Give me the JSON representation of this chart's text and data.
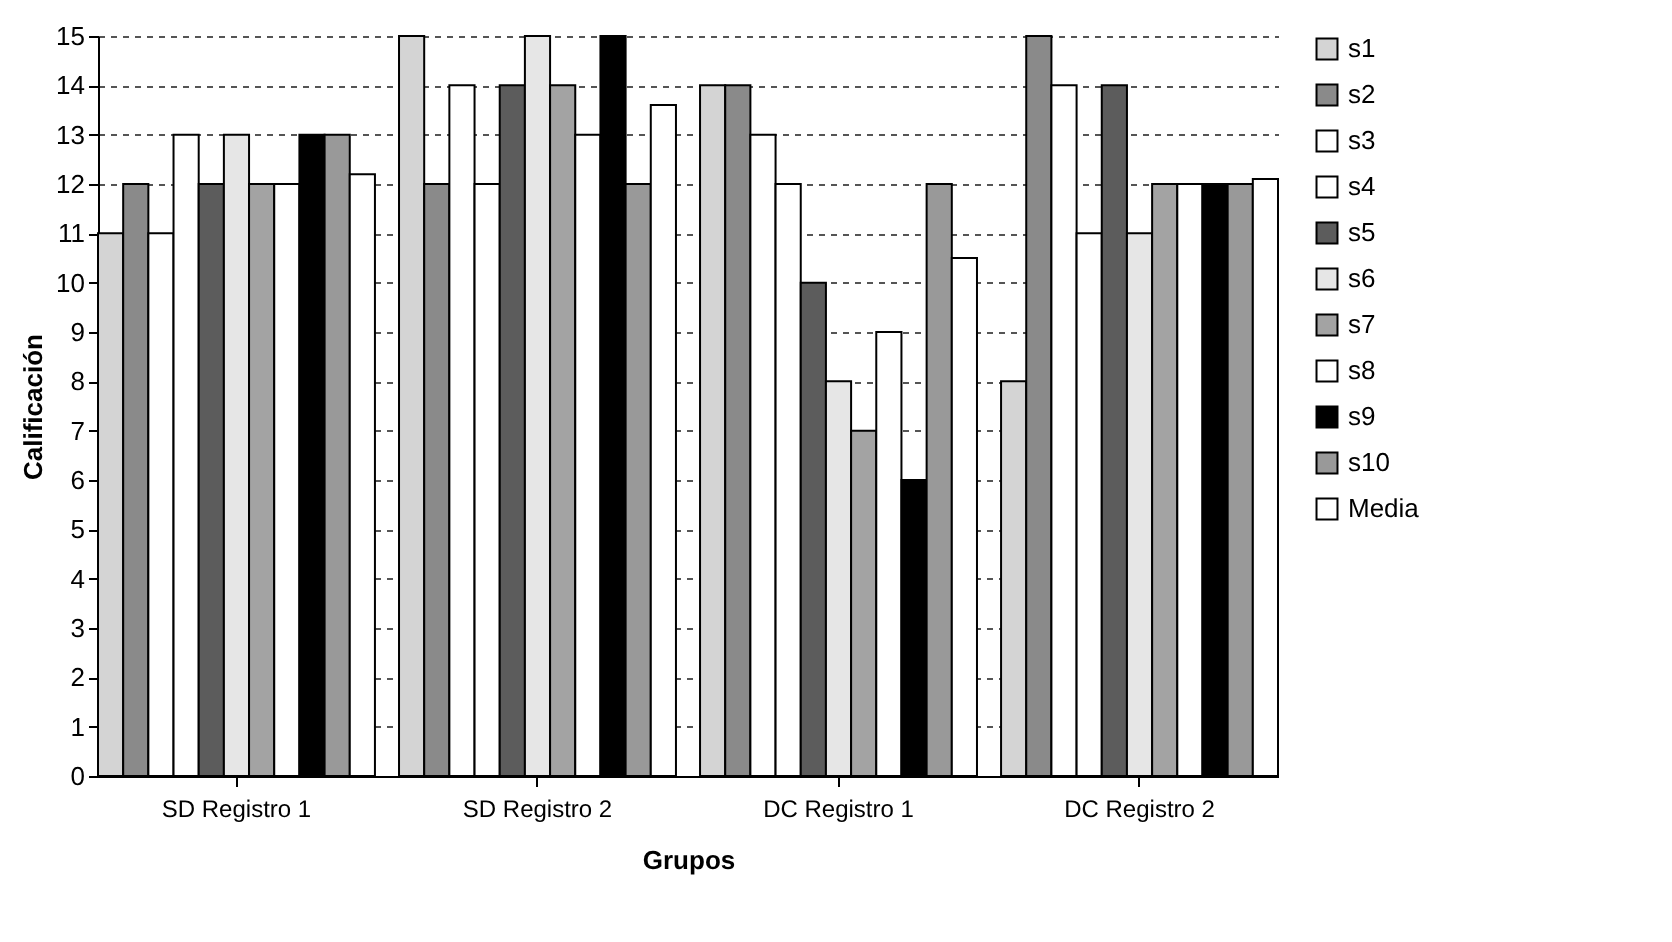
{
  "chart_data": {
    "type": "bar",
    "xlabel": "Grupos",
    "ylabel": "Calificación",
    "categories": [
      "SD Registro 1",
      "SD Registro 2",
      "DC Registro 1",
      "DC Registro 2"
    ],
    "series": [
      {
        "name": "s1",
        "color": "#d4d4d4",
        "values": [
          11,
          15,
          14,
          8
        ]
      },
      {
        "name": "s2",
        "color": "#8a8a8a",
        "values": [
          12,
          12,
          14,
          15
        ]
      },
      {
        "name": "s3",
        "color": "#ffffff",
        "values": [
          11,
          14,
          13,
          14
        ]
      },
      {
        "name": "s4",
        "color": "#ffffff",
        "values": [
          13,
          12,
          12,
          11
        ]
      },
      {
        "name": "s5",
        "color": "#5c5c5c",
        "values": [
          12,
          14,
          10,
          14
        ]
      },
      {
        "name": "s6",
        "color": "#e6e6e6",
        "values": [
          13,
          15,
          8,
          11
        ]
      },
      {
        "name": "s7",
        "color": "#a3a3a3",
        "values": [
          12,
          14,
          7,
          12
        ]
      },
      {
        "name": "s8",
        "color": "#ffffff",
        "values": [
          12,
          13,
          9,
          12
        ]
      },
      {
        "name": "s9",
        "color": "#000000",
        "values": [
          13,
          15,
          6,
          12
        ]
      },
      {
        "name": "s10",
        "color": "#999999",
        "values": [
          13,
          12,
          12,
          12
        ]
      },
      {
        "name": "Media",
        "color": "#ffffff",
        "values": [
          12.2,
          13.6,
          10.5,
          12.1
        ]
      }
    ],
    "ylim": [
      0,
      15
    ],
    "yticks": [
      0,
      1,
      2,
      3,
      4,
      5,
      6,
      7,
      8,
      9,
      10,
      11,
      12,
      13,
      14,
      15
    ],
    "grid": "y",
    "legend": "right"
  }
}
